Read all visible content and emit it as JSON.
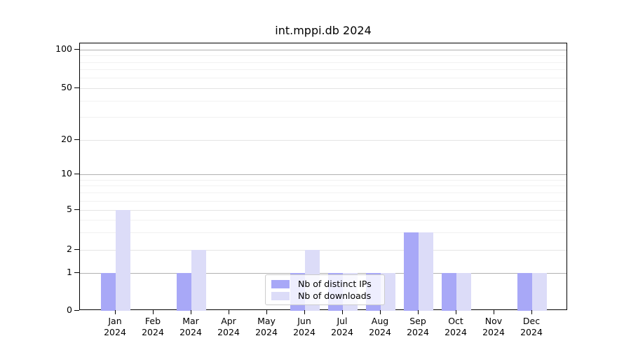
{
  "figure": {
    "title": "int.mppi.db 2024"
  },
  "chart_data": {
    "type": "bar",
    "title": "int.mppi.db 2024",
    "categories": [
      "Jan 2024",
      "Feb 2024",
      "Mar 2024",
      "Apr 2024",
      "May 2024",
      "Jun 2024",
      "Jul 2024",
      "Aug 2024",
      "Sep 2024",
      "Oct 2024",
      "Nov 2024",
      "Dec 2024"
    ],
    "series": [
      {
        "name": "Nb of distinct IPs",
        "color": "#a8a8f7",
        "values": [
          1,
          0,
          1,
          0,
          0,
          1,
          1,
          1,
          3,
          1,
          0,
          1
        ]
      },
      {
        "name": "Nb of downloads",
        "color": "#dcdcf8",
        "values": [
          5,
          0,
          2,
          0,
          0,
          2,
          1,
          1,
          3,
          1,
          0,
          1
        ]
      }
    ],
    "xlabel": "",
    "ylabel": "",
    "y_axis": {
      "scale": "log-with-zero",
      "tick_labels": [
        0,
        1,
        2,
        5,
        10,
        20,
        50,
        100
      ],
      "major_gridlines": [
        1,
        10,
        100
      ],
      "mid_gridlines": [
        2,
        5,
        20,
        50
      ],
      "minor_gridlines": [
        3,
        4,
        6,
        7,
        8,
        9,
        30,
        40,
        60,
        70,
        80,
        90
      ],
      "ylim": [
        0,
        120
      ]
    },
    "grid": true,
    "legend_position": "lower center"
  }
}
